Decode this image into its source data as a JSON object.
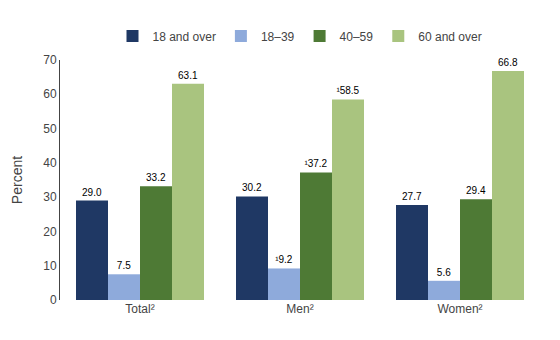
{
  "chart_data": {
    "type": "bar",
    "categories": [
      "Total²",
      "Men²",
      "Women²"
    ],
    "series": [
      {
        "name": "18 and over",
        "color": "#1f3864",
        "values": [
          29.0,
          30.2,
          27.7
        ],
        "value_labels": [
          "29.0",
          "30.2",
          "27.7"
        ]
      },
      {
        "name": "18–39",
        "color": "#8eaadb",
        "values": [
          7.5,
          9.2,
          5.6
        ],
        "value_labels": [
          "7.5",
          "¹9.2",
          "5.6"
        ]
      },
      {
        "name": "40–59",
        "color": "#4e7a35",
        "values": [
          33.2,
          37.2,
          29.4
        ],
        "value_labels": [
          "33.2",
          "¹37.2",
          "29.4"
        ]
      },
      {
        "name": "60 and over",
        "color": "#a9c47f",
        "values": [
          63.1,
          58.5,
          66.8
        ],
        "value_labels": [
          "63.1",
          "¹58.5",
          "66.8"
        ]
      }
    ],
    "ylabel": "Percent",
    "ylim": [
      0,
      70
    ],
    "yticks": [
      0,
      10,
      20,
      30,
      40,
      50,
      60,
      70
    ],
    "grid": false,
    "legend": "top",
    "data_labels": true
  }
}
